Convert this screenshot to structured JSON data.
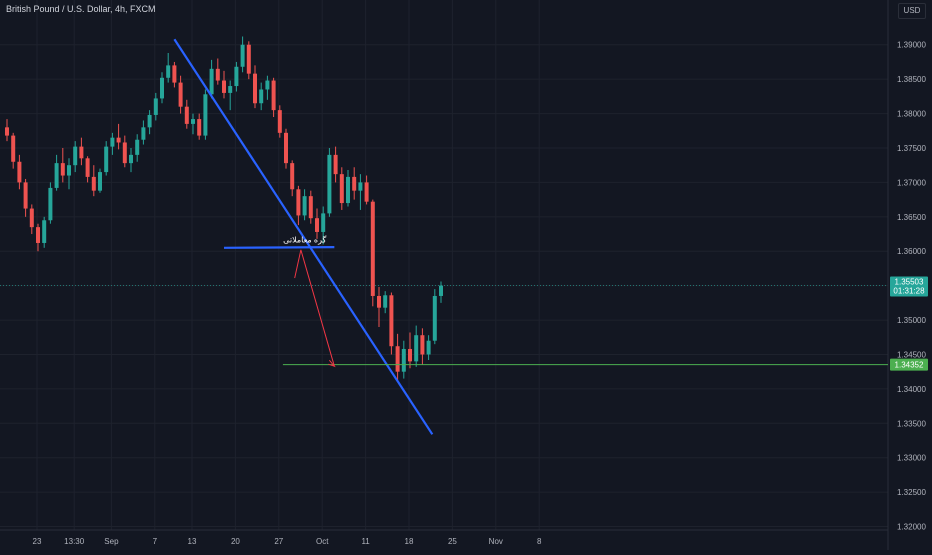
{
  "header": {
    "title": "British Pound / U.S. Dollar, 4h, FXCM",
    "currency": "USD"
  },
  "chart_data": {
    "type": "candlestick",
    "y_ticks": [
      "1.39000",
      "1.38500",
      "1.38000",
      "1.37500",
      "1.37000",
      "1.36500",
      "1.36000",
      "1.35500",
      "1.35000",
      "1.34500",
      "1.34000",
      "1.33500",
      "1.33000",
      "1.32500",
      "1.32000"
    ],
    "y_tick_values": [
      1.39,
      1.385,
      1.38,
      1.375,
      1.37,
      1.365,
      1.36,
      1.355,
      1.35,
      1.345,
      1.34,
      1.335,
      1.33,
      1.325,
      1.32
    ],
    "ylim": [
      1.3195,
      1.3965
    ],
    "x_ticks": [
      "23",
      "13:30",
      "Sep",
      "7",
      "13",
      "20",
      "27",
      "Oct",
      "11",
      "18",
      "25",
      "Nov",
      "8"
    ],
    "x_tick_index": [
      0,
      6,
      12,
      19,
      25,
      32,
      39,
      46,
      53,
      60,
      67,
      74,
      81
    ],
    "current_price": {
      "label": "1.35503",
      "countdown": "01:31:28",
      "value": 1.35503,
      "color": "#26a69a"
    },
    "target_price": {
      "label": "1.34352",
      "value": 1.34352,
      "color": "#4caf50"
    },
    "annotation": {
      "text": "گره معاملاتی",
      "x_index": 44.8,
      "y": 1.3613
    },
    "colors": {
      "up": "#26a69a",
      "down": "#ef5350",
      "trendline": "#2962ff",
      "arrow": "#f23645"
    },
    "trendlines": [
      {
        "name": "descending-trendline",
        "x1": 27.0,
        "y1": 1.3908,
        "x2": 68.6,
        "y2": 1.3334
      },
      {
        "name": "support-line",
        "x1": 35.0,
        "y1": 1.3605,
        "x2": 52.8,
        "y2": 1.3606
      }
    ],
    "target_line": {
      "x1": 44.5,
      "x2": 86.0,
      "y": 1.34352
    },
    "arrow_path": [
      [
        46.4,
        1.3561
      ],
      [
        47.4,
        1.3602
      ],
      [
        52.8,
        1.3433
      ]
    ],
    "candles": [
      [
        1.378,
        1.3792,
        1.376,
        1.3768
      ],
      [
        1.3768,
        1.3772,
        1.372,
        1.373
      ],
      [
        1.373,
        1.374,
        1.369,
        1.37
      ],
      [
        1.37,
        1.3705,
        1.365,
        1.3662
      ],
      [
        1.3662,
        1.3668,
        1.3625,
        1.3635
      ],
      [
        1.3635,
        1.364,
        1.36,
        1.3612
      ],
      [
        1.3612,
        1.365,
        1.3605,
        1.3645
      ],
      [
        1.3645,
        1.37,
        1.364,
        1.3692
      ],
      [
        1.3692,
        1.374,
        1.3688,
        1.3728
      ],
      [
        1.3728,
        1.375,
        1.37,
        1.371
      ],
      [
        1.371,
        1.3735,
        1.369,
        1.3725
      ],
      [
        1.3725,
        1.376,
        1.3715,
        1.3752
      ],
      [
        1.3752,
        1.3765,
        1.3725,
        1.3735
      ],
      [
        1.3735,
        1.3738,
        1.37,
        1.3708
      ],
      [
        1.3708,
        1.3725,
        1.368,
        1.3688
      ],
      [
        1.3688,
        1.372,
        1.3685,
        1.3715
      ],
      [
        1.3715,
        1.376,
        1.371,
        1.3752
      ],
      [
        1.3752,
        1.3772,
        1.374,
        1.3765
      ],
      [
        1.3765,
        1.3785,
        1.3748,
        1.3758
      ],
      [
        1.3758,
        1.3768,
        1.3722,
        1.3728
      ],
      [
        1.3728,
        1.375,
        1.3715,
        1.374
      ],
      [
        1.374,
        1.377,
        1.373,
        1.3762
      ],
      [
        1.3762,
        1.379,
        1.3755,
        1.378
      ],
      [
        1.378,
        1.3805,
        1.377,
        1.3798
      ],
      [
        1.3798,
        1.383,
        1.379,
        1.3822
      ],
      [
        1.3822,
        1.386,
        1.3815,
        1.3852
      ],
      [
        1.3852,
        1.3888,
        1.3845,
        1.387
      ],
      [
        1.387,
        1.3875,
        1.3838,
        1.3845
      ],
      [
        1.3845,
        1.3855,
        1.38,
        1.381
      ],
      [
        1.381,
        1.382,
        1.3778,
        1.3785
      ],
      [
        1.3785,
        1.38,
        1.377,
        1.3792
      ],
      [
        1.3792,
        1.38,
        1.3762,
        1.3768
      ],
      [
        1.3768,
        1.3835,
        1.3762,
        1.3828
      ],
      [
        1.3828,
        1.3878,
        1.3822,
        1.3865
      ],
      [
        1.3865,
        1.388,
        1.3842,
        1.3848
      ],
      [
        1.3848,
        1.3862,
        1.3822,
        1.383
      ],
      [
        1.383,
        1.3848,
        1.3805,
        1.384
      ],
      [
        1.384,
        1.3875,
        1.3832,
        1.3868
      ],
      [
        1.3868,
        1.3912,
        1.386,
        1.39
      ],
      [
        1.39,
        1.3905,
        1.385,
        1.3858
      ],
      [
        1.3858,
        1.387,
        1.3808,
        1.3815
      ],
      [
        1.3815,
        1.3845,
        1.3805,
        1.3835
      ],
      [
        1.3835,
        1.3855,
        1.382,
        1.3848
      ],
      [
        1.3848,
        1.3852,
        1.3795,
        1.3805
      ],
      [
        1.3805,
        1.3812,
        1.3765,
        1.3772
      ],
      [
        1.3772,
        1.3778,
        1.372,
        1.3728
      ],
      [
        1.3728,
        1.3732,
        1.368,
        1.369
      ],
      [
        1.369,
        1.3695,
        1.3638,
        1.3652
      ],
      [
        1.3652,
        1.369,
        1.3645,
        1.368
      ],
      [
        1.368,
        1.3688,
        1.364,
        1.3648
      ],
      [
        1.3648,
        1.3662,
        1.3618,
        1.3628
      ],
      [
        1.3628,
        1.3665,
        1.361,
        1.3655
      ],
      [
        1.3655,
        1.375,
        1.365,
        1.374
      ],
      [
        1.374,
        1.3752,
        1.37,
        1.3712
      ],
      [
        1.3712,
        1.3722,
        1.366,
        1.367
      ],
      [
        1.367,
        1.3718,
        1.3665,
        1.3708
      ],
      [
        1.3708,
        1.3722,
        1.3675,
        1.3688
      ],
      [
        1.3688,
        1.3712,
        1.366,
        1.37
      ],
      [
        1.37,
        1.371,
        1.3668,
        1.3672
      ],
      [
        1.3672,
        1.3675,
        1.352,
        1.3535
      ],
      [
        1.3535,
        1.3548,
        1.349,
        1.3518
      ],
      [
        1.3518,
        1.3542,
        1.351,
        1.3536
      ],
      [
        1.3536,
        1.354,
        1.345,
        1.3462
      ],
      [
        1.3462,
        1.348,
        1.341,
        1.3425
      ],
      [
        1.3425,
        1.347,
        1.3415,
        1.3458
      ],
      [
        1.3458,
        1.3482,
        1.343,
        1.344
      ],
      [
        1.344,
        1.3492,
        1.3432,
        1.3478
      ],
      [
        1.3478,
        1.3488,
        1.3435,
        1.345
      ],
      [
        1.345,
        1.3478,
        1.3442,
        1.347
      ],
      [
        1.347,
        1.3545,
        1.3465,
        1.3535
      ],
      [
        1.3535,
        1.3556,
        1.3525,
        1.355
      ]
    ]
  }
}
